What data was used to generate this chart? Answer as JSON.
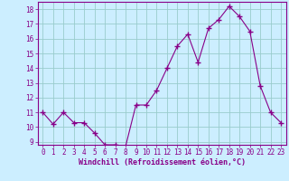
{
  "x": [
    0,
    1,
    2,
    3,
    4,
    5,
    6,
    7,
    8,
    9,
    10,
    11,
    12,
    13,
    14,
    15,
    16,
    17,
    18,
    19,
    20,
    21,
    22,
    23
  ],
  "y": [
    11.0,
    10.2,
    11.0,
    10.3,
    10.3,
    9.6,
    8.8,
    8.8,
    8.7,
    11.5,
    11.5,
    12.5,
    14.0,
    15.5,
    16.3,
    14.4,
    16.7,
    17.3,
    18.2,
    17.5,
    16.5,
    12.8,
    11.0,
    10.3
  ],
  "line_color": "#880088",
  "marker": "+",
  "marker_size": 4,
  "marker_linewidth": 1.0,
  "bg_color": "#cceeff",
  "grid_color": "#99cccc",
  "xlabel": "Windchill (Refroidissement éolien,°C)",
  "xlabel_fontsize": 6.0,
  "ylim": [
    8.8,
    18.5
  ],
  "xlim": [
    -0.5,
    23.5
  ],
  "yticks": [
    9,
    10,
    11,
    12,
    13,
    14,
    15,
    16,
    17,
    18
  ],
  "xticks": [
    0,
    1,
    2,
    3,
    4,
    5,
    6,
    7,
    8,
    9,
    10,
    11,
    12,
    13,
    14,
    15,
    16,
    17,
    18,
    19,
    20,
    21,
    22,
    23
  ],
  "tick_fontsize": 5.5,
  "spine_color": "#880088",
  "linewidth": 0.8
}
